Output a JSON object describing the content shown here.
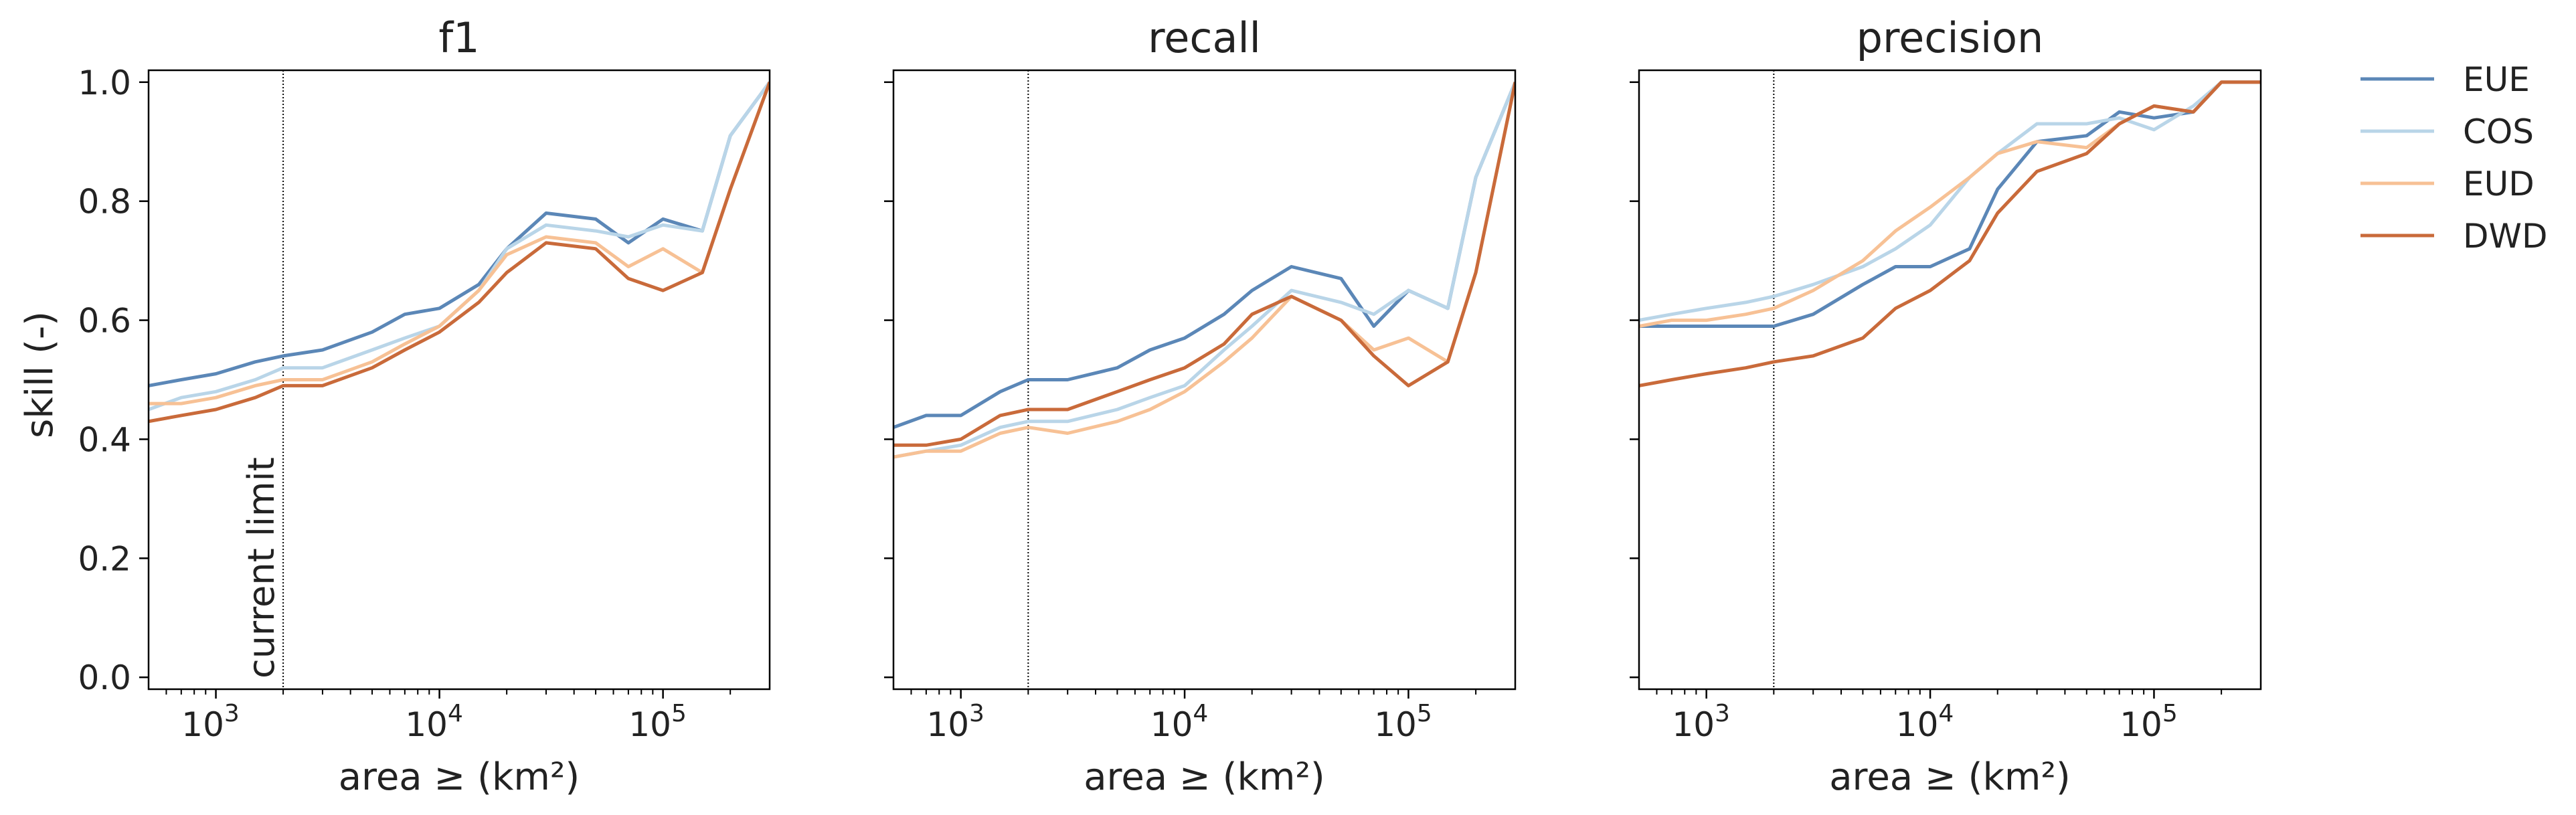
{
  "figure": {
    "ylabel": "skill (-)",
    "xlabel": "area ≥ (km²)",
    "annotation": "current limit"
  },
  "legend": {
    "position": "outside-right",
    "entries": [
      {
        "name": "EUE",
        "color": "#5b87b7"
      },
      {
        "name": "COS",
        "color": "#b9d5e8"
      },
      {
        "name": "EUD",
        "color": "#f7c195"
      },
      {
        "name": "DWD",
        "color": "#c96a3a"
      }
    ]
  },
  "chart_data": [
    {
      "type": "line",
      "title": "f1",
      "xlabel": "area ≥ (km²)",
      "ylabel": "skill (-)",
      "xscale": "log",
      "xlim": [
        500,
        300000
      ],
      "ylim": [
        -0.02,
        1.02
      ],
      "xticks": [
        {
          "value": 1000,
          "base": "10",
          "exp": "3"
        },
        {
          "value": 10000,
          "base": "10",
          "exp": "4"
        },
        {
          "value": 100000,
          "base": "10",
          "exp": "5"
        }
      ],
      "yticks": [
        "0.0",
        "0.2",
        "0.4",
        "0.6",
        "0.8",
        "1.0"
      ],
      "vline": 2000,
      "annotation": "current limit",
      "x": [
        500,
        700,
        1000,
        1500,
        2000,
        3000,
        5000,
        7000,
        10000,
        15000,
        20000,
        30000,
        50000,
        70000,
        100000,
        150000,
        200000,
        300000
      ],
      "series": [
        {
          "name": "EUE",
          "values": [
            0.49,
            0.5,
            0.51,
            0.53,
            0.54,
            0.55,
            0.58,
            0.61,
            0.62,
            0.66,
            0.72,
            0.78,
            0.77,
            0.73,
            0.77,
            0.75,
            0.91,
            1.0
          ]
        },
        {
          "name": "COS",
          "values": [
            0.45,
            0.47,
            0.48,
            0.5,
            0.52,
            0.52,
            0.55,
            0.57,
            0.59,
            0.65,
            0.72,
            0.76,
            0.75,
            0.74,
            0.76,
            0.75,
            0.91,
            1.0
          ]
        },
        {
          "name": "EUD",
          "values": [
            0.46,
            0.46,
            0.47,
            0.49,
            0.5,
            0.5,
            0.53,
            0.56,
            0.59,
            0.65,
            0.71,
            0.74,
            0.73,
            0.69,
            0.72,
            0.68,
            0.82,
            1.0
          ]
        },
        {
          "name": "DWD",
          "values": [
            0.43,
            0.44,
            0.45,
            0.47,
            0.49,
            0.49,
            0.52,
            0.55,
            0.58,
            0.63,
            0.68,
            0.73,
            0.72,
            0.67,
            0.65,
            0.68,
            0.82,
            1.0
          ]
        }
      ]
    },
    {
      "type": "line",
      "title": "recall",
      "xlabel": "area ≥ (km²)",
      "xscale": "log",
      "xlim": [
        500,
        300000
      ],
      "ylim": [
        -0.02,
        1.02
      ],
      "xticks": [
        {
          "value": 1000,
          "base": "10",
          "exp": "3"
        },
        {
          "value": 10000,
          "base": "10",
          "exp": "4"
        },
        {
          "value": 100000,
          "base": "10",
          "exp": "5"
        }
      ],
      "yticks": [],
      "vline": 2000,
      "x": [
        500,
        700,
        1000,
        1500,
        2000,
        3000,
        5000,
        7000,
        10000,
        15000,
        20000,
        30000,
        50000,
        70000,
        100000,
        150000,
        200000,
        300000
      ],
      "series": [
        {
          "name": "EUE",
          "values": [
            0.42,
            0.44,
            0.44,
            0.48,
            0.5,
            0.5,
            0.52,
            0.55,
            0.57,
            0.61,
            0.65,
            0.69,
            0.67,
            0.59,
            0.65,
            0.62,
            0.84,
            1.0
          ]
        },
        {
          "name": "COS",
          "values": [
            0.37,
            0.38,
            0.39,
            0.42,
            0.43,
            0.43,
            0.45,
            0.47,
            0.49,
            0.55,
            0.59,
            0.65,
            0.63,
            0.61,
            0.65,
            0.62,
            0.84,
            1.0
          ]
        },
        {
          "name": "EUD",
          "values": [
            0.37,
            0.38,
            0.38,
            0.41,
            0.42,
            0.41,
            0.43,
            0.45,
            0.48,
            0.53,
            0.57,
            0.64,
            0.6,
            0.55,
            0.57,
            0.53,
            0.68,
            1.0
          ]
        },
        {
          "name": "DWD",
          "values": [
            0.39,
            0.39,
            0.4,
            0.44,
            0.45,
            0.45,
            0.48,
            0.5,
            0.52,
            0.56,
            0.61,
            0.64,
            0.6,
            0.54,
            0.49,
            0.53,
            0.68,
            1.0
          ]
        }
      ]
    },
    {
      "type": "line",
      "title": "precision",
      "xlabel": "area ≥ (km²)",
      "xscale": "log",
      "xlim": [
        500,
        300000
      ],
      "ylim": [
        -0.02,
        1.02
      ],
      "xticks": [
        {
          "value": 1000,
          "base": "10",
          "exp": "3"
        },
        {
          "value": 10000,
          "base": "10",
          "exp": "4"
        },
        {
          "value": 100000,
          "base": "10",
          "exp": "5"
        }
      ],
      "yticks": [],
      "vline": 2000,
      "x": [
        500,
        700,
        1000,
        1500,
        2000,
        3000,
        5000,
        7000,
        10000,
        15000,
        20000,
        30000,
        50000,
        70000,
        100000,
        150000,
        200000,
        300000
      ],
      "series": [
        {
          "name": "EUE",
          "values": [
            0.59,
            0.59,
            0.59,
            0.59,
            0.59,
            0.61,
            0.66,
            0.69,
            0.69,
            0.72,
            0.82,
            0.9,
            0.91,
            0.95,
            0.94,
            0.95,
            1.0,
            1.0
          ]
        },
        {
          "name": "COS",
          "values": [
            0.6,
            0.61,
            0.62,
            0.63,
            0.64,
            0.66,
            0.69,
            0.72,
            0.76,
            0.84,
            0.88,
            0.93,
            0.93,
            0.94,
            0.92,
            0.96,
            1.0,
            1.0
          ]
        },
        {
          "name": "EUD",
          "values": [
            0.59,
            0.6,
            0.6,
            0.61,
            0.62,
            0.65,
            0.7,
            0.75,
            0.79,
            0.84,
            0.88,
            0.9,
            0.89,
            0.93,
            0.96,
            0.95,
            1.0,
            1.0
          ]
        },
        {
          "name": "DWD",
          "values": [
            0.49,
            0.5,
            0.51,
            0.52,
            0.53,
            0.54,
            0.57,
            0.62,
            0.65,
            0.7,
            0.78,
            0.85,
            0.88,
            0.93,
            0.96,
            0.95,
            1.0,
            1.0
          ]
        }
      ]
    }
  ]
}
